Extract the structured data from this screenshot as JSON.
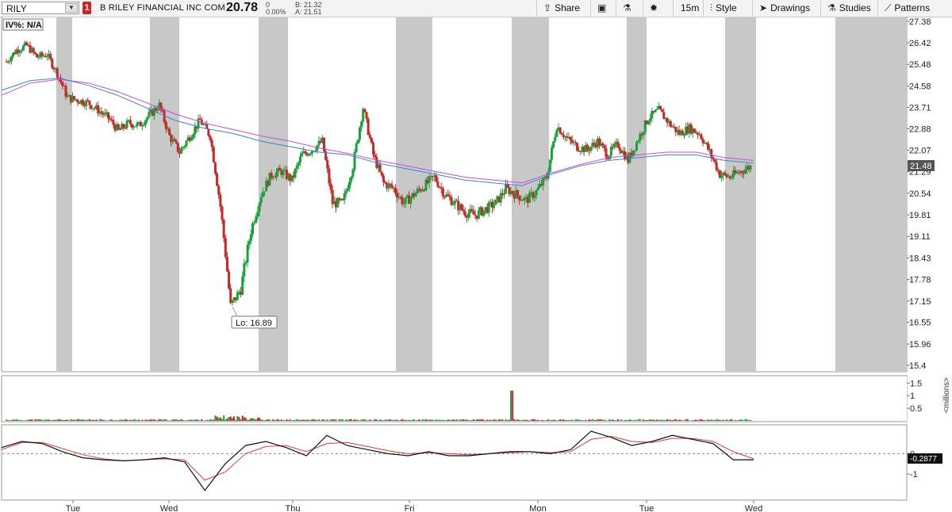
{
  "header": {
    "symbol": "RILY",
    "badge": "1",
    "company": "B RILEY FINANCIAL INC COM",
    "last": "20.78",
    "change": "0",
    "change_pct": "0.00%",
    "bid": "B: 21.32",
    "ask": "A: 21.51"
  },
  "toolbar": {
    "share_label": "Share",
    "interval_label": "15m",
    "style_label": "Style",
    "drawings_label": "Drawings",
    "studies_label": "Studies",
    "patterns_label": "Patterns",
    "icons": [
      "share-icon",
      "export-icon",
      "flask-icon",
      "gear-icon",
      "style-icon",
      "cursor-icon",
      "studies-flask-icon",
      "patterns-icon"
    ]
  },
  "colors": {
    "up": "#18a23a",
    "down": "#c62828",
    "ema_blue": "#3f7fd8",
    "ema_purple": "#c24ee0",
    "session_shade": "#c8c8c8",
    "osc_black": "#111111",
    "osc_red": "#e53935"
  },
  "chart_data": [
    {
      "type": "candlestick",
      "title": "",
      "iv_label": "IV%: N/A",
      "y_ticks": [
        "27.38",
        "26.42",
        "25.48",
        "24.58",
        "23.71",
        "22.88",
        "22.07",
        "21.29",
        "20.54",
        "19.81",
        "19.11",
        "18.43",
        "17.78",
        "17.15",
        "16.55",
        "15.96",
        "15.4"
      ],
      "ylim": [
        15.4,
        27.38
      ],
      "log_scale": true,
      "x_labels": [
        "Tue",
        "Wed",
        "Thu",
        "Fri",
        "Mon",
        "Tue",
        "Wed"
      ],
      "current_price_label": "21.48",
      "low_label": "Lo: 16.89",
      "low_value": 16.89,
      "series": [
        {
          "name": "",
          "ohlc_path": [
            25.6,
            26.1,
            26.3,
            25.8,
            25.9,
            25.1,
            24.1,
            24.0,
            23.9,
            23.6,
            23.3,
            22.8,
            23.1,
            23.0,
            23.4,
            23.8,
            22.6,
            22.0,
            22.6,
            23.2,
            22.6,
            20.1,
            17.0,
            17.5,
            19.3,
            20.5,
            21.2,
            21.3,
            21.0,
            21.9,
            22.1,
            22.4,
            20.2,
            20.2,
            21.5,
            23.7,
            21.9,
            20.9,
            20.7,
            20.2,
            20.5,
            20.8,
            21.1,
            20.5,
            20.2,
            19.9,
            19.8,
            20.0,
            20.2,
            20.7,
            20.5,
            20.3,
            20.6,
            21.1,
            23.0,
            22.5,
            22.2,
            22.1,
            22.4,
            21.9,
            22.3,
            21.7,
            22.5,
            23.3,
            23.6,
            23.1,
            22.7,
            22.9,
            22.7,
            22.0,
            21.2,
            21.1,
            21.3,
            21.48
          ],
          "ema_fast": [
            24.4,
            24.8,
            24.9,
            24.6,
            24.2,
            23.7,
            23.2,
            22.9,
            22.7,
            22.4,
            22.2,
            22.0,
            21.9,
            21.6,
            21.4,
            21.2,
            21.0,
            20.9,
            20.8,
            21.2,
            21.5,
            21.7,
            21.8,
            21.9,
            21.9,
            21.7,
            21.6
          ],
          "ema_slow": [
            24.2,
            24.7,
            24.85,
            24.7,
            24.35,
            23.9,
            23.45,
            23.1,
            22.85,
            22.6,
            22.4,
            22.15,
            21.95,
            21.7,
            21.5,
            21.3,
            21.1,
            21.0,
            20.9,
            21.25,
            21.55,
            21.8,
            21.9,
            22.0,
            22.0,
            21.8,
            21.7
          ]
        }
      ]
    },
    {
      "type": "bar",
      "title": "",
      "ylabel": "<millions>",
      "y_ticks": [
        "1.5",
        "1",
        "0.5"
      ],
      "ylim": [
        0,
        1.7
      ],
      "spike_value": 1.2,
      "typical_value": 0.04
    },
    {
      "type": "line",
      "title": "",
      "y_ticks": [
        "0",
        "-1"
      ],
      "ylim": [
        -2.2,
        1.3
      ],
      "current_value_label": "-0.2877",
      "series": [
        {
          "name": "",
          "values": [
            0.3,
            0.6,
            0.5,
            0.1,
            -0.2,
            -0.3,
            -0.35,
            -0.3,
            -0.2,
            -0.4,
            -1.8,
            -0.5,
            0.4,
            0.6,
            0.3,
            -0.1,
            0.9,
            0.4,
            0.2,
            0.0,
            -0.1,
            0.1,
            -0.1,
            -0.1,
            0.0,
            0.1,
            0.1,
            0.0,
            0.2,
            1.1,
            0.8,
            0.4,
            0.6,
            0.9,
            0.7,
            0.5,
            -0.3,
            -0.3
          ]
        },
        {
          "name": "",
          "values": [
            0.2,
            0.55,
            0.55,
            0.25,
            -0.05,
            -0.25,
            -0.35,
            -0.3,
            -0.25,
            -0.3,
            -1.3,
            -0.9,
            0.0,
            0.35,
            0.4,
            0.1,
            0.5,
            0.55,
            0.35,
            0.15,
            0.0,
            0.05,
            0.0,
            -0.05,
            0.0,
            0.05,
            0.1,
            0.05,
            0.1,
            0.7,
            0.85,
            0.6,
            0.55,
            0.75,
            0.75,
            0.6,
            0.1,
            -0.25
          ]
        }
      ]
    }
  ]
}
